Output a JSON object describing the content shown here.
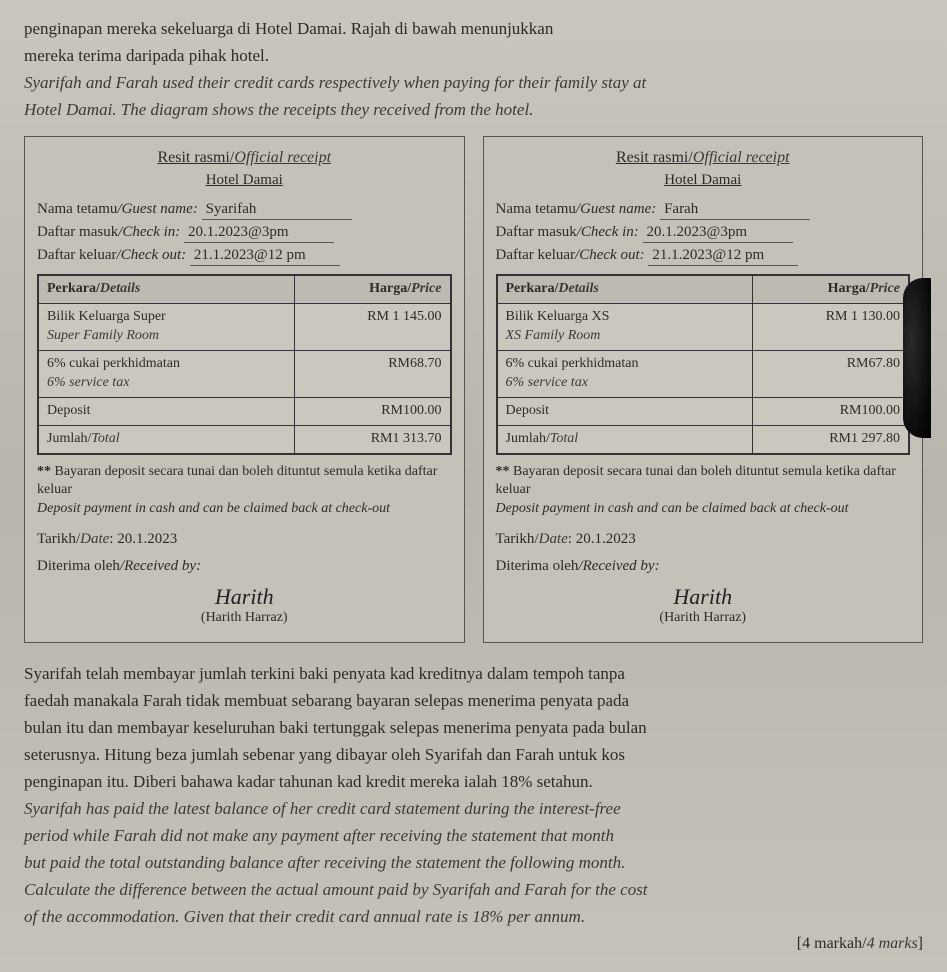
{
  "intro": {
    "bm_line1": "penginapan mereka sekeluarga di Hotel Damai. Rajah di bawah menunjukkan",
    "bm_line2": "mereka terima daripada pihak hotel.",
    "en_line1": "Syarifah and Farah used their credit cards respectively when paying for their family stay at",
    "en_line2": "Hotel Damai. The diagram shows the receipts they received from the hotel."
  },
  "labels": {
    "receipt_title_bm": "Resit rasmi",
    "receipt_title_en": "Official receipt",
    "hotel_name": "Hotel Damai",
    "guest_bm": "Nama tetamu",
    "guest_en": "Guest name",
    "checkin_bm": "Daftar masuk",
    "checkin_en": "Check in",
    "checkout_bm": "Daftar keluar",
    "checkout_en": "Check out",
    "perkara": "Perkara",
    "details": "Details",
    "harga": "Harga",
    "price": "Price",
    "deposit": "Deposit",
    "jumlah": "Jumlah",
    "total": "Total",
    "note_bm": "Bayaran deposit secara tunai dan boleh dituntut semula ketika daftar keluar",
    "note_en": "Deposit payment in cash and can be claimed back at check-out",
    "tarikh": "Tarikh",
    "date": "Date",
    "received_bm": "Diterima oleh",
    "received_en": "Received by",
    "signature": "Harith",
    "signatory": "(Harith Harraz)"
  },
  "receipts": {
    "left": {
      "guest": "Syarifah",
      "checkin": "20.1.2023@3pm",
      "checkout": "21.1.2023@12 pm",
      "room_bm": "Bilik Keluarga Super",
      "room_en": "Super Family Room",
      "room_price": "RM 1 145.00",
      "tax_bm": "6% cukai perkhidmatan",
      "tax_en": "6% service tax",
      "tax_price": "RM68.70",
      "deposit_price": "RM100.00",
      "total_price": "RM1 313.70",
      "date": "20.1.2023"
    },
    "right": {
      "guest": "Farah",
      "checkin": "20.1.2023@3pm",
      "checkout": "21.1.2023@12 pm",
      "room_bm": "Bilik Keluarga XS",
      "room_en": "XS Family Room",
      "room_price": "RM 1 130.00",
      "tax_bm": "6% cukai perkhidmatan",
      "tax_en": "6% service tax",
      "tax_price": "RM67.80",
      "deposit_price": "RM100.00",
      "total_price": "RM1 297.80",
      "date": "20.1.2023"
    }
  },
  "question": {
    "bm1": "Syarifah telah membayar jumlah terkini baki penyata kad kreditnya dalam tempoh tanpa",
    "bm2": "faedah manakala Farah tidak membuat sebarang bayaran selepas menerima penyata pada",
    "bm3": "bulan itu dan membayar keseluruhan baki tertunggak selepas menerima penyata pada bulan",
    "bm4": "seterusnya. Hitung beza jumlah sebenar yang dibayar oleh Syarifah dan Farah untuk kos",
    "bm5": "penginapan itu. Diberi bahawa kadar tahunan kad kredit mereka ialah 18% setahun.",
    "en1": "Syarifah has paid the latest balance of her credit card statement during the interest-free",
    "en2": "period while Farah did not make any payment after receiving the statement that month",
    "en3": "but paid the total outstanding balance after receiving the statement the following month.",
    "en4": "Calculate the difference between the actual amount paid by Syarifah and Farah for the cost",
    "en5": "of the accommodation. Given that their credit card annual rate is 18% per annum.",
    "marks": "[4 markah/4 marks]"
  },
  "style": {
    "receipt_bg": "#c4c2b8",
    "page_bg": "#bcbcb2",
    "border_color": "#333333",
    "font_body_pt": 13,
    "font_intro_pt": 13,
    "font_receipt_pt": 11
  }
}
